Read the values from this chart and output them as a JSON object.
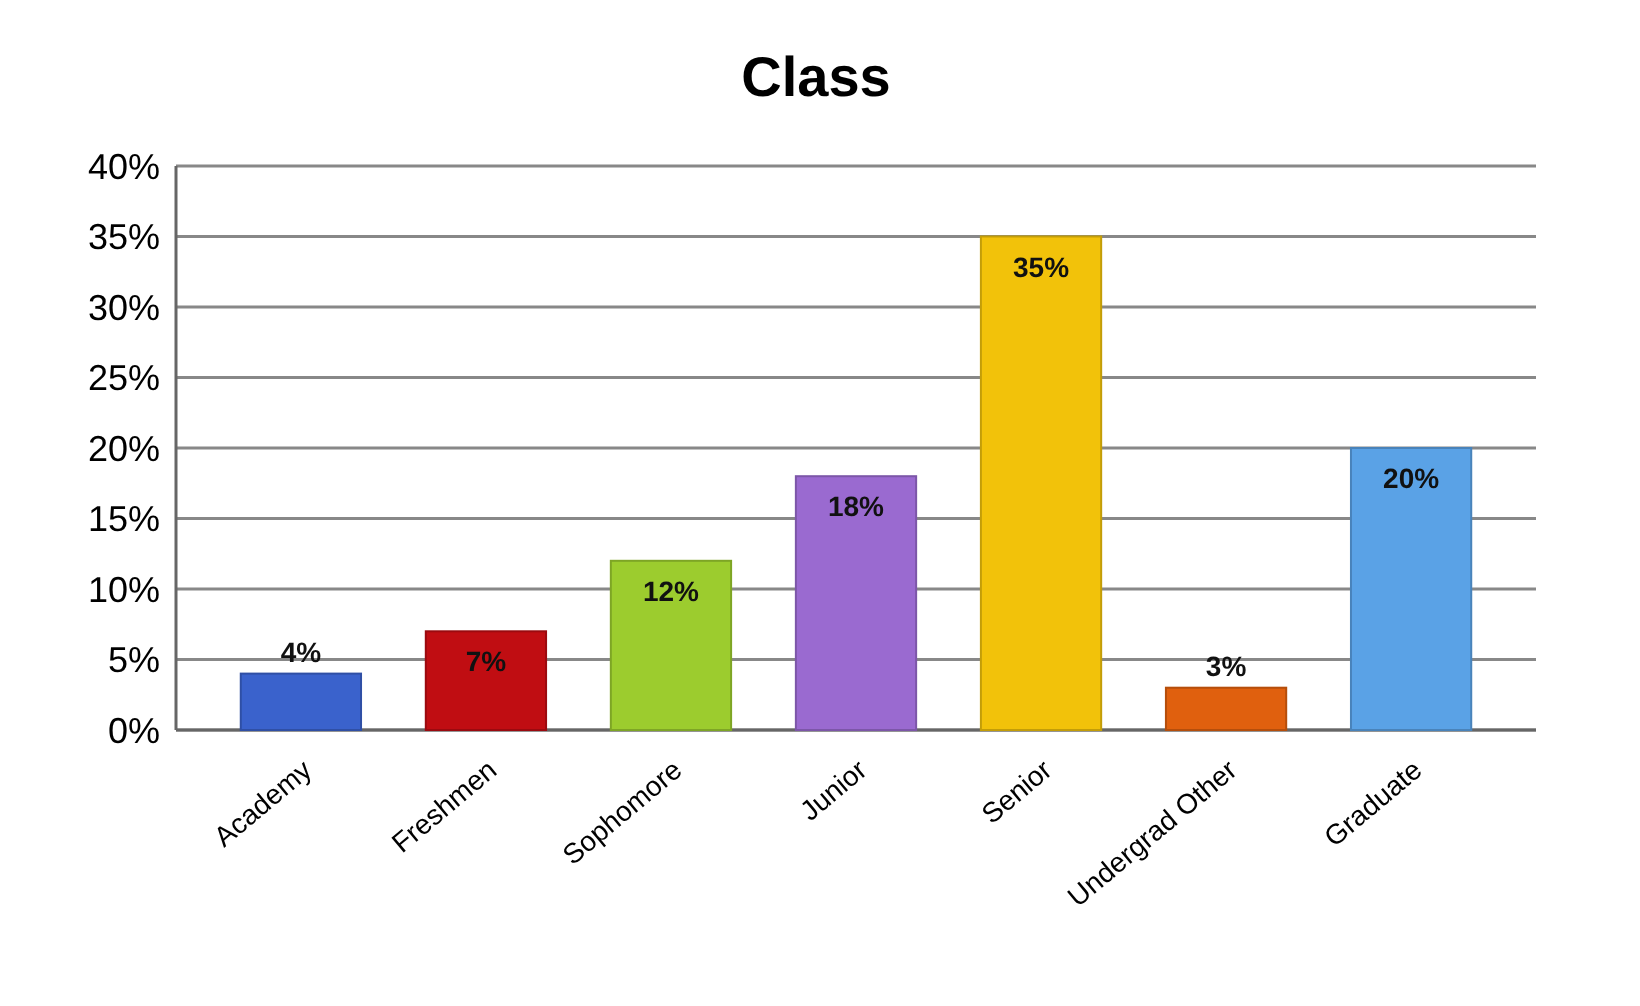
{
  "chart_data": {
    "type": "bar",
    "title": "Class",
    "categories": [
      "Academy",
      "Freshmen",
      "Sophomore",
      "Junior",
      "Senior",
      "Undergrad Other",
      "Graduate"
    ],
    "values": [
      4,
      7,
      12,
      18,
      35,
      3,
      20
    ],
    "colors": [
      "#3a62cc",
      "#c00d12",
      "#9ccc2e",
      "#9a6ad0",
      "#f2c20a",
      "#e0600e",
      "#5aa2e6"
    ],
    "value_labels": [
      "4%",
      "7%",
      "12%",
      "18%",
      "35%",
      "3%",
      "20%"
    ],
    "ylim": [
      0,
      40
    ],
    "yticks": [
      {
        "value": 0,
        "label": "0%"
      },
      {
        "value": 5,
        "label": "5%"
      },
      {
        "value": 10,
        "label": "10%"
      },
      {
        "value": 15,
        "label": "15%"
      },
      {
        "value": 20,
        "label": "20%"
      },
      {
        "value": 25,
        "label": "25%"
      },
      {
        "value": 30,
        "label": "30%"
      },
      {
        "value": 35,
        "label": "35%"
      },
      {
        "value": 40,
        "label": "40%"
      }
    ],
    "grid": "y"
  }
}
